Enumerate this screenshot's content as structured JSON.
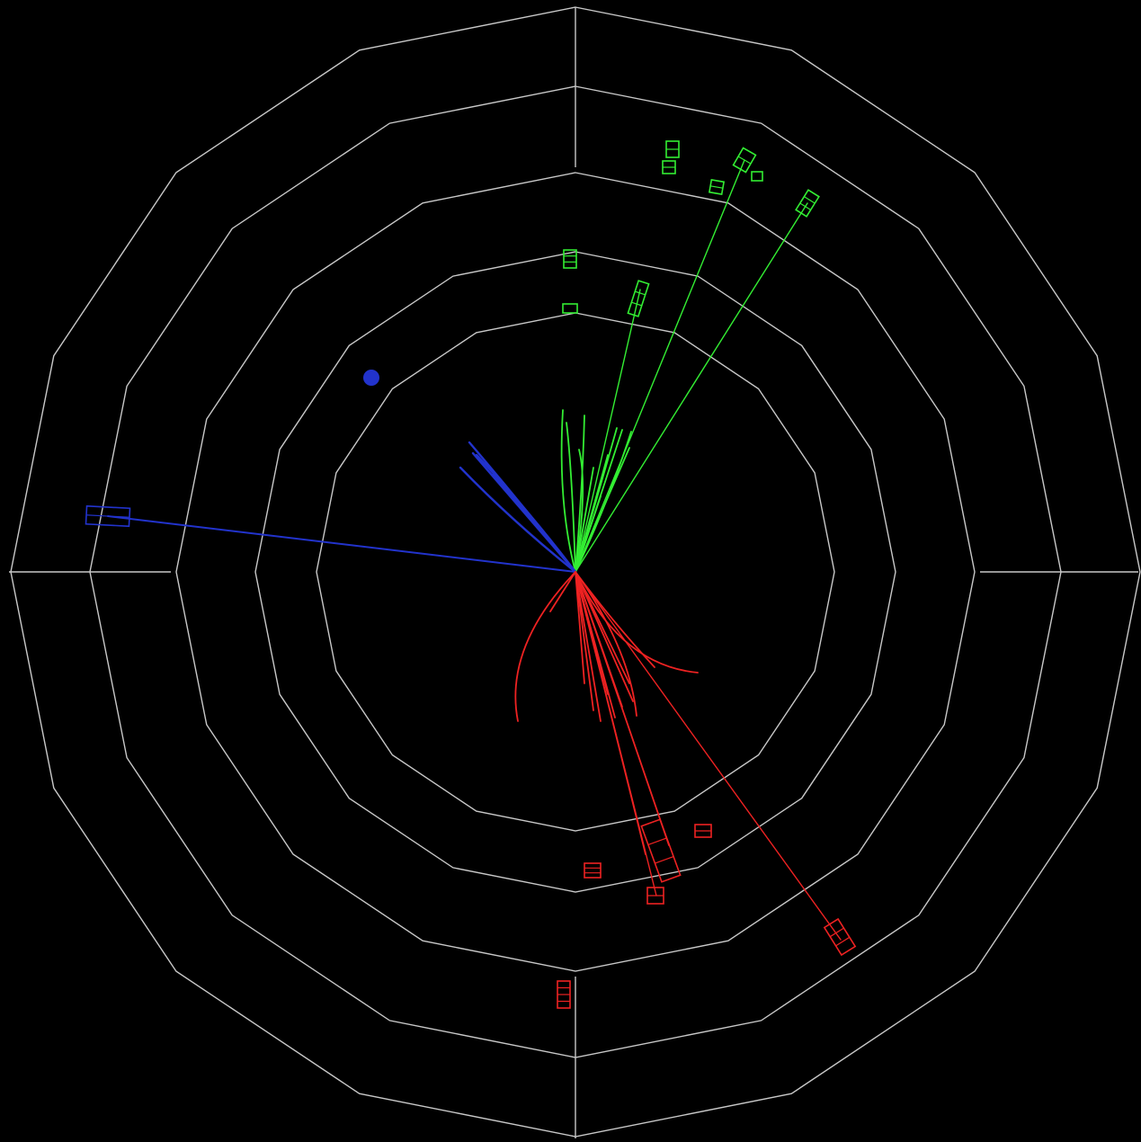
{
  "display": {
    "background": "#000000",
    "grid_color": "#c8c8c8",
    "rings": 5,
    "ring_shape": "polygon-16",
    "crosshair": true
  },
  "jets": [
    {
      "name": "green",
      "color": "#33ee33",
      "track_count": 14,
      "hit_count": 9
    },
    {
      "name": "blue",
      "color": "#2233cc",
      "track_count": 7,
      "hit_count": 2
    },
    {
      "name": "red",
      "color": "#ee2222",
      "track_count": 18,
      "hit_count": 6
    }
  ]
}
